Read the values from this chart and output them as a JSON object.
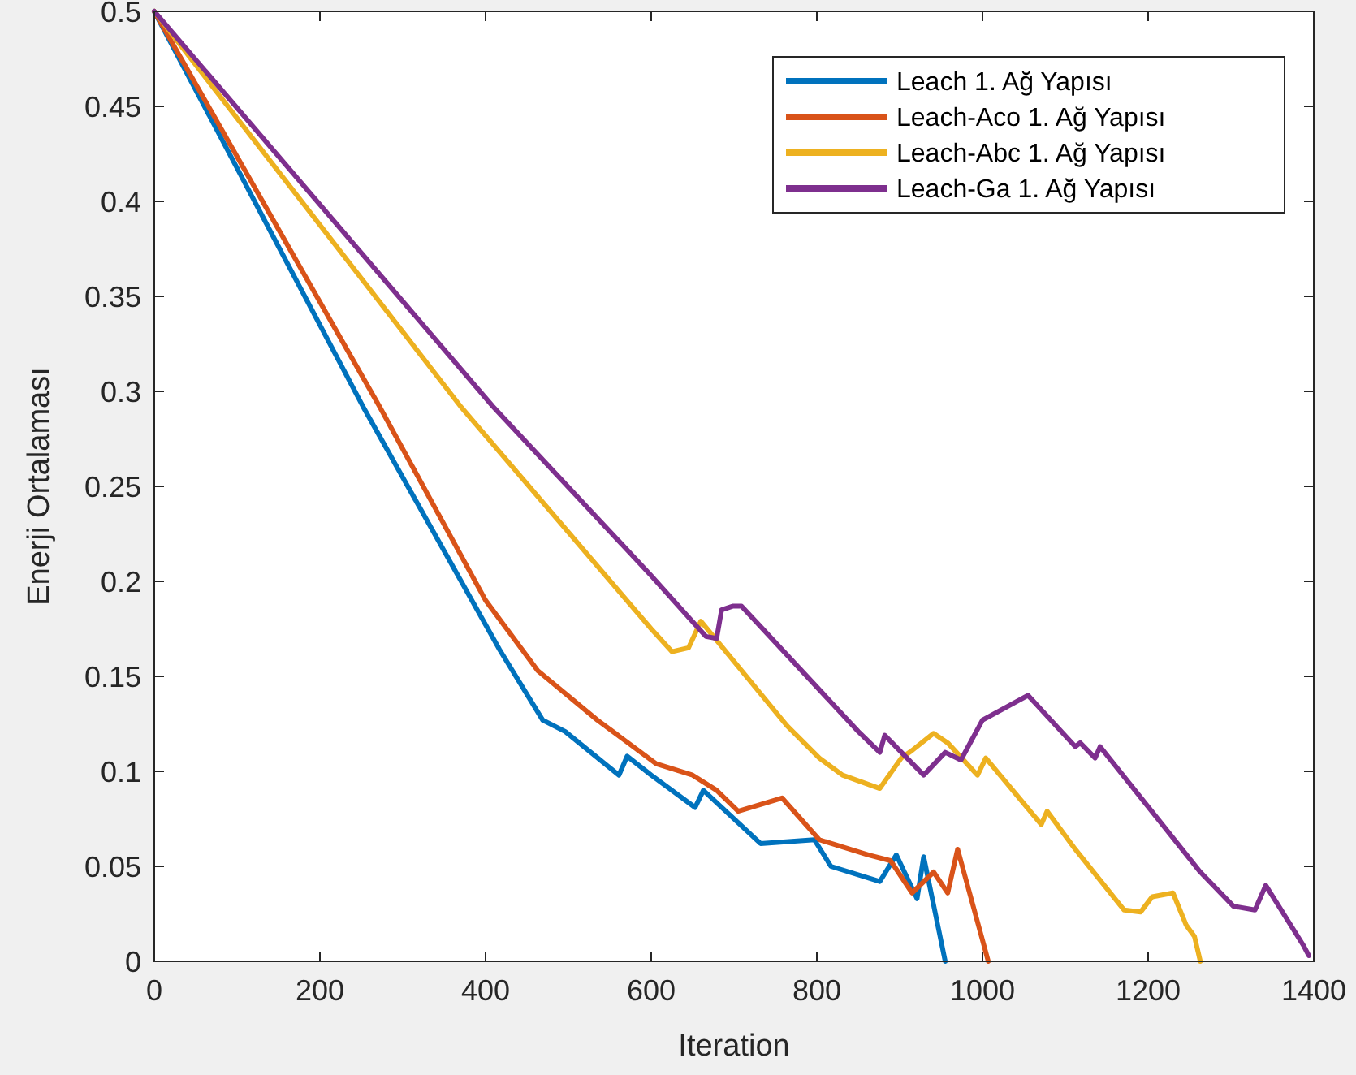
{
  "chart_data": {
    "type": "line",
    "xlabel": "Iteration",
    "ylabel": "Enerji Ortalaması",
    "xlim": [
      0,
      1400
    ],
    "ylim": [
      0,
      0.5
    ],
    "xticks": [
      0,
      200,
      400,
      600,
      800,
      1000,
      1200,
      1400
    ],
    "yticks": [
      0,
      0.05,
      0.1,
      0.15,
      0.2,
      0.25,
      0.3,
      0.35,
      0.4,
      0.45,
      0.5
    ],
    "grid": false,
    "legend": "top right",
    "line_style": "solid",
    "marker": "none",
    "series": [
      {
        "name": "Leach 1. Ağ Yapısı",
        "color": "#0072bd",
        "x": [
          0,
          252,
          417,
          469,
          496,
          561,
          571,
          600,
          653,
          663,
          732,
          797,
          817,
          876,
          896,
          921,
          929,
          955
        ],
        "values": [
          0.5,
          0.292,
          0.164,
          0.127,
          0.121,
          0.098,
          0.108,
          0.098,
          0.081,
          0.09,
          0.062,
          0.064,
          0.05,
          0.042,
          0.056,
          0.033,
          0.055,
          0
        ]
      },
      {
        "name": "Leach-Aco 1. Ağ Yapısı",
        "color": "#d95319",
        "x": [
          0,
          272,
          400,
          463,
          535,
          606,
          650,
          679,
          705,
          758,
          803,
          862,
          889,
          915,
          941,
          958,
          970,
          1007
        ],
        "values": [
          0.5,
          0.292,
          0.19,
          0.153,
          0.127,
          0.104,
          0.098,
          0.09,
          0.079,
          0.086,
          0.064,
          0.056,
          0.053,
          0.036,
          0.047,
          0.036,
          0.059,
          0
        ]
      },
      {
        "name": "Leach-Abc 1. Ağ Yapısı",
        "color": "#edb120",
        "x": [
          0,
          370,
          600,
          625,
          645,
          660,
          764,
          803,
          831,
          876,
          902,
          915,
          941,
          958,
          994,
          1004,
          1071,
          1078,
          1112,
          1171,
          1191,
          1205,
          1230,
          1246,
          1256,
          1263
        ],
        "values": [
          0.5,
          0.292,
          0.175,
          0.163,
          0.165,
          0.179,
          0.124,
          0.107,
          0.098,
          0.091,
          0.107,
          0.111,
          0.12,
          0.115,
          0.098,
          0.107,
          0.072,
          0.079,
          0.059,
          0.027,
          0.026,
          0.034,
          0.036,
          0.019,
          0.013,
          0
        ]
      },
      {
        "name": "Leach-Ga 1. Ağ Yapısı",
        "color": "#7e2f8e",
        "x": [
          0,
          409,
          600,
          666,
          679,
          685,
          699,
          709,
          850,
          876,
          882,
          929,
          955,
          974,
          1000,
          1055,
          1112,
          1118,
          1136,
          1142,
          1263,
          1303,
          1329,
          1342,
          1388,
          1394
        ],
        "values": [
          0.5,
          0.292,
          0.203,
          0.171,
          0.17,
          0.185,
          0.187,
          0.187,
          0.121,
          0.11,
          0.119,
          0.098,
          0.11,
          0.106,
          0.127,
          0.14,
          0.113,
          0.115,
          0.107,
          0.113,
          0.047,
          0.029,
          0.027,
          0.04,
          0.008,
          0.003
        ]
      }
    ]
  }
}
